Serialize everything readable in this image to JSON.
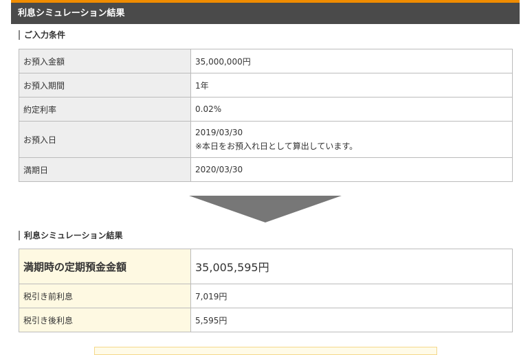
{
  "header": {
    "title": "利息シミュレーション結果"
  },
  "input": {
    "heading": "ご入力条件",
    "rows": [
      {
        "label": "お預入金額",
        "value": "35,000,000円"
      },
      {
        "label": "お預入期間",
        "value": "1年"
      },
      {
        "label": "約定利率",
        "value": "0.02%"
      },
      {
        "label": "お預入日",
        "value": "2019/03/30",
        "note": "※本日をお預入れ日として算出しています。"
      },
      {
        "label": "満期日",
        "value": "2020/03/30"
      }
    ]
  },
  "result": {
    "heading": "利息シミュレーション結果",
    "rows": [
      {
        "label": "満期時の定期預金金額",
        "value": "35,005,595円"
      },
      {
        "label": "税引き前利息",
        "value": "7,019円"
      },
      {
        "label": "税引き後利息",
        "value": "5,595円"
      }
    ]
  }
}
